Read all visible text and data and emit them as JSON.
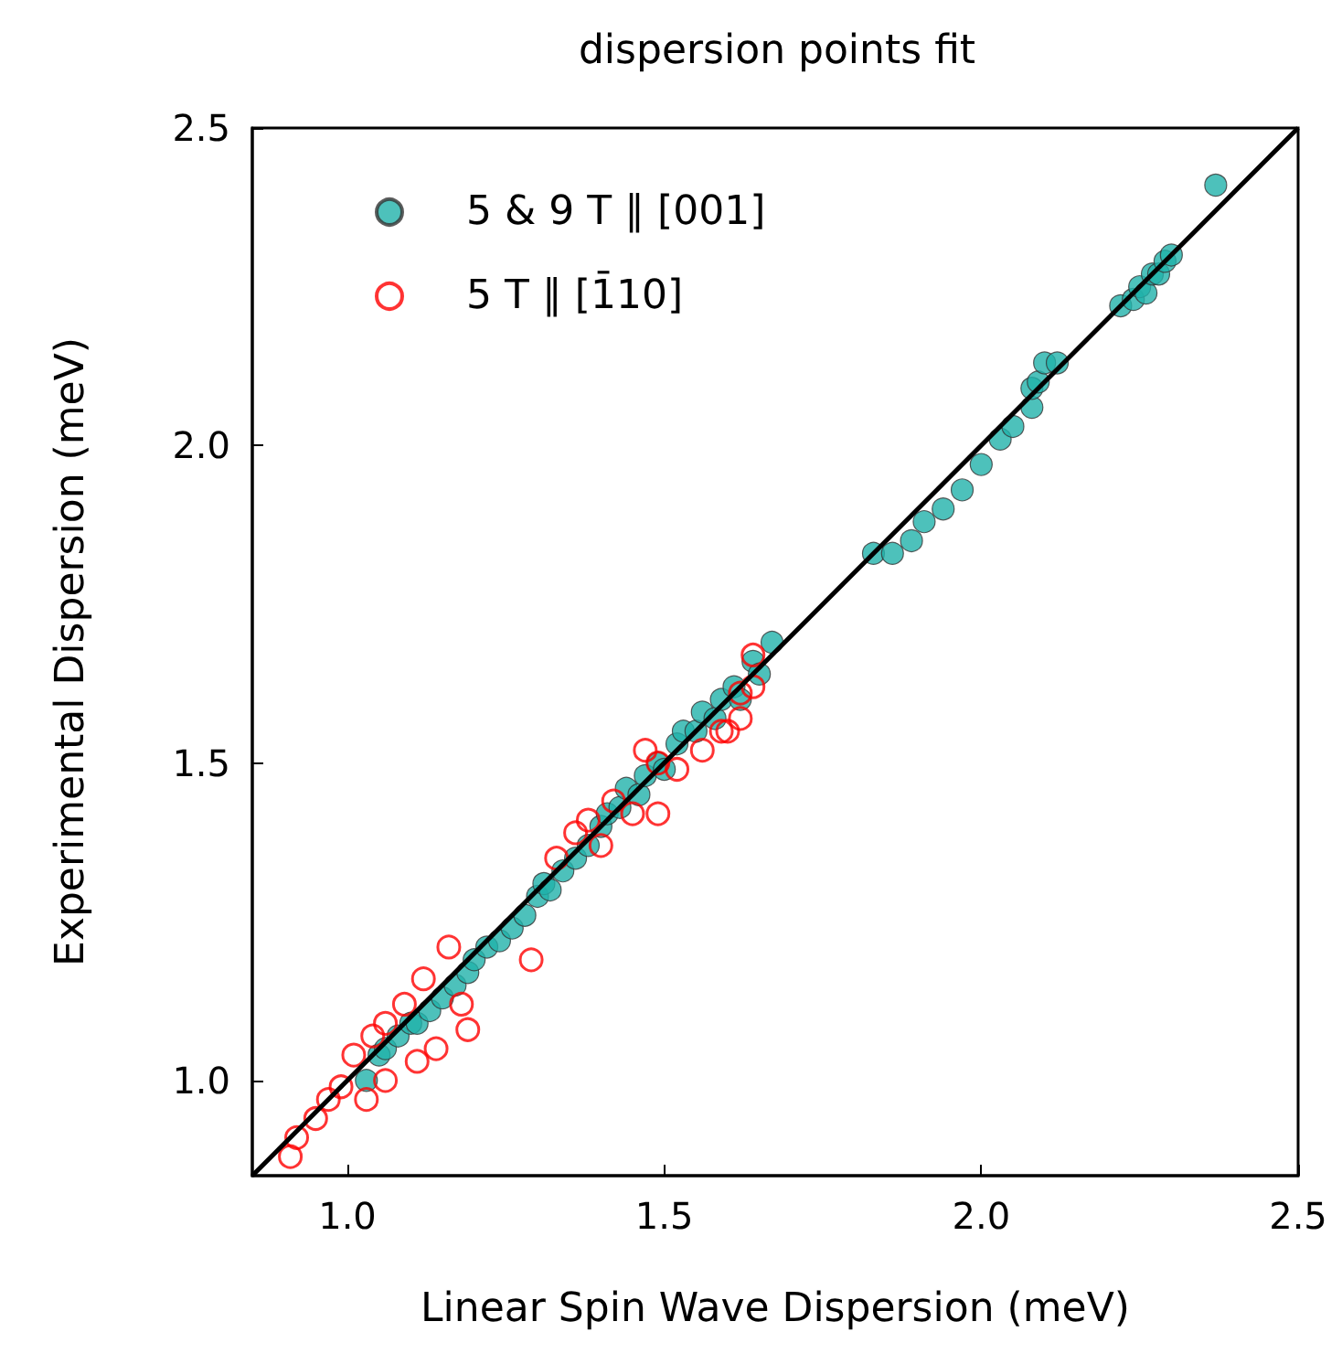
{
  "chart_data": {
    "type": "scatter",
    "title": "dispersion points fit",
    "xlabel": "Linear Spin Wave Dispersion (meV)",
    "ylabel": "Experimental Dispersion (meV)",
    "xlim": [
      0.85,
      2.5
    ],
    "ylim": [
      0.85,
      2.5
    ],
    "xticks": [
      {
        "value": 1,
        "label": "1.0"
      },
      1.5,
      {
        "value": 2,
        "label": "2.0"
      },
      2.5
    ],
    "yticks": [
      {
        "value": 1,
        "label": "1.0"
      },
      1.5,
      {
        "value": 2,
        "label": "2.0"
      },
      2.5
    ],
    "grid": false,
    "legend": "top left",
    "marker": "circle",
    "series": [
      {
        "name": "5 & 9 T ∥ [001]",
        "color": "#20b2aa",
        "x": [
          1.03,
          1.05,
          1.06,
          1.08,
          1.1,
          1.11,
          1.13,
          1.15,
          1.17,
          1.19,
          1.2,
          1.22,
          1.24,
          1.26,
          1.28,
          1.3,
          1.31,
          1.32,
          1.34,
          1.36,
          1.38,
          1.4,
          1.41,
          1.43,
          1.44,
          1.46,
          1.47,
          1.49,
          1.5,
          1.52,
          1.53,
          1.55,
          1.56,
          1.58,
          1.59,
          1.61,
          1.62,
          1.64,
          1.65,
          1.67,
          1.83,
          1.86,
          1.89,
          1.91,
          1.94,
          1.97,
          2.0,
          2.03,
          2.05,
          2.08,
          2.08,
          2.09,
          2.1,
          2.12,
          2.22,
          2.24,
          2.25,
          2.26,
          2.27,
          2.28,
          2.29,
          2.3,
          2.37
        ],
        "values": [
          1.0,
          1.04,
          1.05,
          1.07,
          1.09,
          1.09,
          1.11,
          1.13,
          1.15,
          1.17,
          1.19,
          1.21,
          1.22,
          1.24,
          1.26,
          1.29,
          1.31,
          1.3,
          1.33,
          1.35,
          1.37,
          1.4,
          1.42,
          1.43,
          1.46,
          1.45,
          1.48,
          1.5,
          1.49,
          1.53,
          1.55,
          1.55,
          1.58,
          1.57,
          1.6,
          1.62,
          1.6,
          1.66,
          1.64,
          1.69,
          1.83,
          1.83,
          1.85,
          1.88,
          1.9,
          1.93,
          1.97,
          2.01,
          2.03,
          2.06,
          2.09,
          2.1,
          2.13,
          2.13,
          2.22,
          2.23,
          2.25,
          2.24,
          2.27,
          2.27,
          2.29,
          2.3,
          2.41
        ]
      },
      {
        "name": "5 T ∥ [1̄10]",
        "color": "#ff0000",
        "x": [
          0.91,
          0.92,
          0.95,
          0.97,
          0.99,
          1.01,
          1.03,
          1.04,
          1.06,
          1.06,
          1.09,
          1.11,
          1.12,
          1.14,
          1.16,
          1.18,
          1.19,
          1.29,
          1.33,
          1.36,
          1.38,
          1.4,
          1.42,
          1.45,
          1.47,
          1.49,
          1.49,
          1.52,
          1.56,
          1.59,
          1.6,
          1.62,
          1.62,
          1.64,
          1.64
        ],
        "values": [
          0.88,
          0.91,
          0.94,
          0.97,
          0.99,
          1.04,
          0.97,
          1.07,
          1.0,
          1.09,
          1.12,
          1.03,
          1.16,
          1.05,
          1.21,
          1.12,
          1.08,
          1.19,
          1.35,
          1.39,
          1.41,
          1.37,
          1.44,
          1.42,
          1.52,
          1.5,
          1.42,
          1.49,
          1.52,
          1.55,
          1.55,
          1.57,
          1.61,
          1.62,
          1.67
        ]
      },
      {
        "type": "line",
        "color": "#000000",
        "marker": "none",
        "x": [
          0.85,
          2.5
        ],
        "values": [
          0.85,
          2.5
        ]
      }
    ]
  }
}
